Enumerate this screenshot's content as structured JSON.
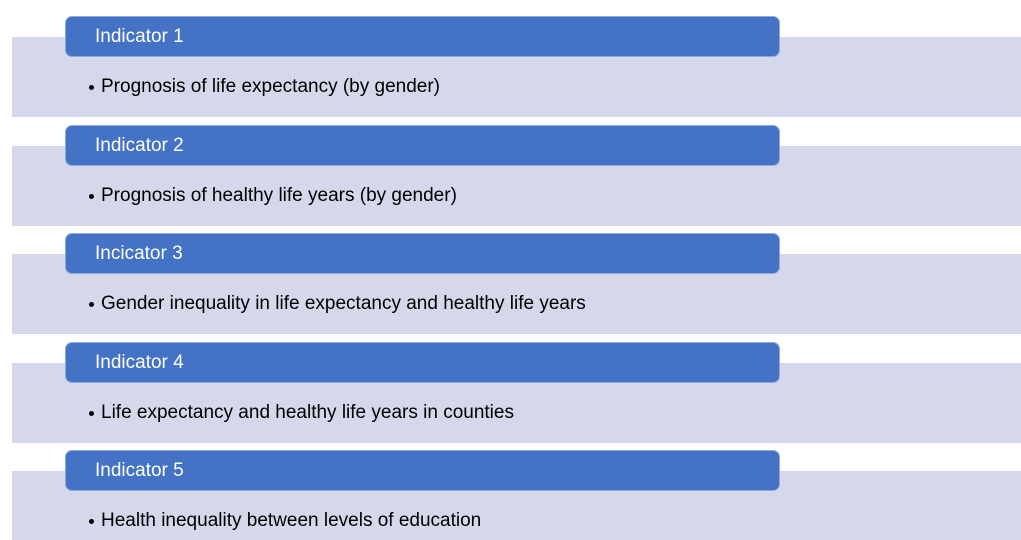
{
  "items": [
    {
      "title": "Indicator 1",
      "bullet": "Prognosis of life expectancy (by gender)"
    },
    {
      "title": "Indicator 2",
      "bullet": "Prognosis of healthy life years (by gender)"
    },
    {
      "title": "Incicator 3",
      "bullet": "Gender inequality in life expectancy and healthy life years"
    },
    {
      "title": "Indicator 4",
      "bullet": "Life expectancy and healthy life years in counties"
    },
    {
      "title": "Indicator 5",
      "bullet": "Health inequality between levels of education"
    }
  ]
}
